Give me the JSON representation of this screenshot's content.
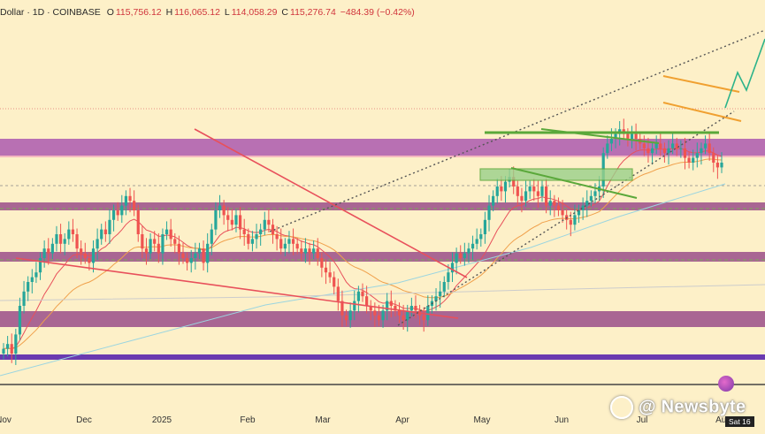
{
  "header": {
    "title": "Dollar · 1D · COINBASE",
    "open_label": "O",
    "open": "115,756.12",
    "high_label": "H",
    "high": "116,065.12",
    "low_label": "L",
    "low": "114,058.29",
    "close_label": "C",
    "close": "115,276.74",
    "change": "−484.39 (−0.42%)"
  },
  "watermark": "@ Newsbyte",
  "date_badge": "Sat 16",
  "chart_data": {
    "type": "candlestick",
    "x_ticks": [
      "Nov",
      "Dec",
      "2025",
      "Feb",
      "Mar",
      "Apr",
      "May",
      "Jun",
      "Jul",
      "Aug"
    ],
    "colors": {
      "up": "#26a69a",
      "down": "#ef5350",
      "zone": "#b062b0",
      "support_zone": "#9a4d8a",
      "base_line": "#6a3ab0",
      "ema_fast": "#e8505b",
      "ema_mid": "#f0a04b",
      "ema_slow": "#9bd5e0",
      "green_lines": "#5aa83a",
      "flag": "#f0a030",
      "channel": "#555555"
    },
    "closes": [
      76,
      77,
      75,
      79,
      85,
      88,
      90,
      91,
      92,
      95,
      97,
      96,
      98,
      100,
      98,
      99,
      101,
      100,
      97,
      96,
      95,
      94,
      97,
      99,
      101,
      100,
      103,
      105,
      104,
      106,
      108,
      107,
      105,
      100,
      97,
      96,
      99,
      98,
      96,
      100,
      101,
      99,
      98,
      96,
      95,
      94,
      95,
      96,
      97,
      94,
      98,
      101,
      105,
      106,
      104,
      103,
      102,
      104,
      101,
      100,
      98,
      99,
      100,
      101,
      103,
      102,
      100,
      99,
      97,
      98,
      99,
      98,
      97,
      96,
      97,
      96,
      97,
      95,
      93,
      92,
      91,
      89,
      86,
      83,
      82,
      84,
      86,
      88,
      87,
      85,
      84,
      83,
      82,
      84,
      86,
      85,
      84,
      83,
      82,
      84,
      85,
      84,
      83,
      82,
      85,
      86,
      87,
      88,
      90,
      92,
      94,
      96,
      95,
      96,
      97,
      98,
      99,
      100,
      103,
      106,
      108,
      110,
      109,
      111,
      112,
      110,
      108,
      107,
      109,
      110,
      109,
      108,
      110,
      106,
      107,
      106,
      105,
      104,
      103,
      102,
      104,
      105,
      106,
      107,
      108,
      109,
      110,
      117,
      119,
      120,
      121,
      122,
      121,
      120,
      121,
      120,
      119,
      118,
      117,
      118,
      119,
      118,
      117,
      118,
      119,
      118,
      118,
      116,
      115,
      116,
      117,
      118,
      119,
      117,
      115,
      114,
      115
    ],
    "key_levels": [
      123000,
      119000,
      109000,
      101000,
      93000,
      88000,
      77000
    ]
  }
}
